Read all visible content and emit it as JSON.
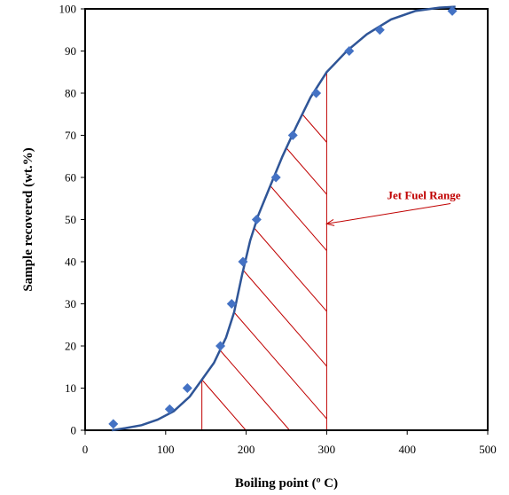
{
  "chart_data": {
    "type": "scatter",
    "xlabel": "Boiling point (º C)",
    "ylabel": "Sample recovered (wt.%)",
    "xlim": [
      0,
      500
    ],
    "ylim": [
      0,
      100
    ],
    "x_ticks": [
      "0",
      "100",
      "200",
      "300",
      "400",
      "500"
    ],
    "y_ticks": [
      "0",
      "10",
      "20",
      "30",
      "40",
      "50",
      "60",
      "70",
      "80",
      "90",
      "100"
    ],
    "grid": false,
    "legend": "none",
    "series": [
      {
        "kind": "markers",
        "marker": "diamond",
        "color": "#4472c4",
        "points": [
          {
            "x": 35,
            "y": 1.5
          },
          {
            "x": 105,
            "y": 5
          },
          {
            "x": 127,
            "y": 10
          },
          {
            "x": 168,
            "y": 20
          },
          {
            "x": 182,
            "y": 30
          },
          {
            "x": 196,
            "y": 40
          },
          {
            "x": 213,
            "y": 50
          },
          {
            "x": 237,
            "y": 60
          },
          {
            "x": 258,
            "y": 70
          },
          {
            "x": 287,
            "y": 80
          },
          {
            "x": 328,
            "y": 90
          },
          {
            "x": 366,
            "y": 95
          },
          {
            "x": 456,
            "y": 99.5
          }
        ]
      },
      {
        "kind": "fit-line",
        "color": "#2f5597",
        "points": [
          {
            "x": 33,
            "y": 0
          },
          {
            "x": 50,
            "y": 0.5
          },
          {
            "x": 70,
            "y": 1.2
          },
          {
            "x": 90,
            "y": 2.5
          },
          {
            "x": 110,
            "y": 4.5
          },
          {
            "x": 130,
            "y": 8
          },
          {
            "x": 145,
            "y": 12
          },
          {
            "x": 160,
            "y": 16
          },
          {
            "x": 175,
            "y": 22
          },
          {
            "x": 185,
            "y": 28
          },
          {
            "x": 195,
            "y": 37
          },
          {
            "x": 205,
            "y": 45
          },
          {
            "x": 215,
            "y": 51
          },
          {
            "x": 230,
            "y": 58
          },
          {
            "x": 245,
            "y": 65
          },
          {
            "x": 262,
            "y": 72
          },
          {
            "x": 280,
            "y": 79
          },
          {
            "x": 300,
            "y": 85
          },
          {
            "x": 325,
            "y": 90
          },
          {
            "x": 350,
            "y": 94
          },
          {
            "x": 380,
            "y": 97.5
          },
          {
            "x": 410,
            "y": 99.5
          },
          {
            "x": 440,
            "y": 100.3
          },
          {
            "x": 460,
            "y": 100.5
          }
        ]
      }
    ],
    "annotation": {
      "text": "Jet Fuel Range",
      "color": "#c00000",
      "range_x": [
        145,
        300
      ],
      "label_at": {
        "x": 380,
        "y": 58
      },
      "arrow_to": {
        "x": 300,
        "y": 49
      }
    }
  }
}
